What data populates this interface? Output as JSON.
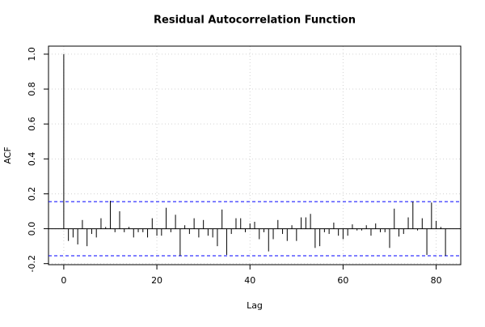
{
  "chart_data": {
    "type": "acf",
    "title": "Residual Autocorrelation Function",
    "x_label": "Lag",
    "y_label": "ACF",
    "x": [
      0,
      1,
      2,
      3,
      4,
      5,
      6,
      7,
      8,
      9,
      10,
      11,
      12,
      13,
      14,
      15,
      16,
      17,
      18,
      19,
      20,
      21,
      22,
      23,
      24,
      25,
      26,
      27,
      28,
      29,
      30,
      31,
      32,
      33,
      34,
      35,
      36,
      37,
      38,
      39,
      40,
      41,
      42,
      43,
      44,
      45,
      46,
      47,
      48,
      49,
      50,
      51,
      52,
      53,
      54,
      55,
      56,
      57,
      58,
      59,
      60,
      61,
      62,
      63,
      64,
      65,
      66,
      67,
      68,
      69,
      70,
      71,
      72,
      73,
      74,
      75,
      76,
      77,
      78,
      79,
      80,
      81,
      82
    ],
    "values": [
      1.0,
      -0.07,
      -0.05,
      -0.09,
      0.05,
      -0.1,
      -0.03,
      -0.05,
      0.06,
      0.01,
      0.16,
      -0.02,
      0.1,
      -0.02,
      0.01,
      -0.05,
      -0.02,
      -0.02,
      -0.05,
      0.06,
      -0.04,
      -0.04,
      0.12,
      -0.02,
      0.08,
      -0.155,
      0.02,
      -0.03,
      0.06,
      -0.05,
      0.05,
      -0.04,
      -0.05,
      -0.1,
      0.11,
      -0.15,
      -0.03,
      0.06,
      0.06,
      -0.02,
      0.03,
      0.04,
      -0.06,
      -0.02,
      -0.13,
      -0.06,
      0.05,
      -0.03,
      -0.07,
      0.02,
      -0.07,
      0.065,
      0.065,
      0.085,
      -0.11,
      -0.1,
      -0.02,
      -0.03,
      0.035,
      -0.04,
      -0.06,
      -0.04,
      0.025,
      -0.01,
      -0.01,
      0.02,
      -0.04,
      0.03,
      -0.02,
      -0.02,
      -0.11,
      0.115,
      -0.045,
      -0.03,
      0.065,
      0.155,
      -0.01,
      0.06,
      -0.15,
      0.15,
      0.045,
      0.01,
      -0.155
    ],
    "color": "#000000",
    "confidence_bounds": [
      0.155,
      -0.155
    ],
    "confidence_color": "#0000ff",
    "xlim": [
      -3.28,
      85.28
    ],
    "ylim": [
      -0.206,
      1.046
    ],
    "xticks": [
      0,
      20,
      40,
      60,
      80
    ],
    "yticks": [
      -0.2,
      {
        "value": 0,
        "label": "0.0"
      },
      0.2,
      0.4,
      0.6,
      0.8,
      {
        "value": 1,
        "label": "1.0"
      }
    ],
    "grid": true
  }
}
